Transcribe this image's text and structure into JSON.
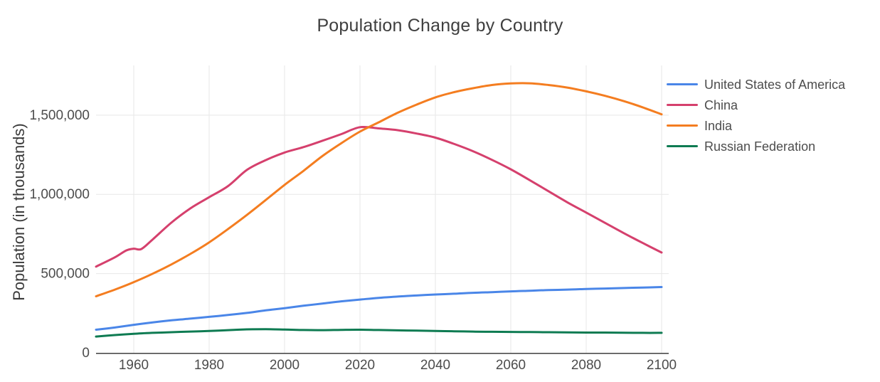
{
  "chart": {
    "title": "Population Change by Country",
    "y_axis_label": "Population (in thousands)",
    "x_ticks": [
      1960,
      1980,
      2000,
      2020,
      2040,
      2060,
      2080,
      2100
    ],
    "y_ticks": [
      {
        "value": 0,
        "label": "0"
      },
      {
        "value": 500000,
        "label": "500,000"
      },
      {
        "value": 1000000,
        "label": "1,000,000"
      },
      {
        "value": 1500000,
        "label": "1,500,000"
      }
    ],
    "colors": {
      "grid": "#e7e7e7",
      "axis": "#3f3f3f",
      "tick_text": "#4c4c4c",
      "title_text": "#3f3f3f"
    }
  },
  "chart_data": {
    "type": "line",
    "title": "Population Change by Country",
    "xlabel": "",
    "ylabel": "Population (in thousands)",
    "x_domain": [
      1950,
      2100
    ],
    "y_domain": [
      0,
      1800000
    ],
    "grid": true,
    "legend_position": "top-right",
    "units": "thousands of people",
    "series": [
      {
        "name": "United States of America",
        "color": "#4a86e8",
        "x": [
          1950,
          1955,
          1960,
          1965,
          1970,
          1975,
          1980,
          1985,
          1990,
          1995,
          2000,
          2005,
          2010,
          2015,
          2020,
          2025,
          2030,
          2035,
          2040,
          2045,
          2050,
          2055,
          2060,
          2065,
          2070,
          2075,
          2080,
          2085,
          2090,
          2095,
          2100
        ],
        "values": [
          146000,
          160000,
          177000,
          192000,
          205000,
          216000,
          227000,
          239000,
          252000,
          268000,
          282000,
          297000,
          311000,
          325000,
          336000,
          347000,
          355000,
          362000,
          368000,
          373000,
          379000,
          383000,
          388000,
          392000,
          396000,
          399000,
          403000,
          406000,
          409000,
          412000,
          415000
        ]
      },
      {
        "name": "China",
        "color": "#d5406d",
        "x": [
          1950,
          1955,
          1958,
          1960,
          1962,
          1965,
          1970,
          1975,
          1980,
          1985,
          1990,
          1995,
          2000,
          2005,
          2010,
          2015,
          2020,
          2025,
          2030,
          2035,
          2040,
          2045,
          2050,
          2055,
          2060,
          2065,
          2070,
          2075,
          2080,
          2085,
          2090,
          2095,
          2100
        ],
        "values": [
          544000,
          603000,
          646000,
          657000,
          655000,
          715000,
          822000,
          911000,
          982000,
          1052000,
          1154000,
          1216000,
          1264000,
          1298000,
          1338000,
          1380000,
          1424000,
          1416000,
          1405000,
          1384000,
          1358000,
          1318000,
          1272000,
          1218000,
          1158000,
          1090000,
          1020000,
          950000,
          885000,
          820000,
          755000,
          693000,
          633000
        ]
      },
      {
        "name": "India",
        "color": "#f47d20",
        "x": [
          1950,
          1955,
          1960,
          1965,
          1970,
          1975,
          1980,
          1985,
          1990,
          1995,
          2000,
          2005,
          2010,
          2015,
          2020,
          2025,
          2030,
          2035,
          2040,
          2045,
          2050,
          2055,
          2060,
          2065,
          2070,
          2075,
          2080,
          2085,
          2090,
          2095,
          2100
        ],
        "values": [
          357000,
          399000,
          446000,
          499000,
          558000,
          624000,
          697000,
          781000,
          870000,
          964000,
          1060000,
          1148000,
          1241000,
          1322000,
          1396000,
          1455000,
          1515000,
          1566000,
          1612000,
          1645000,
          1670000,
          1690000,
          1700000,
          1701000,
          1690000,
          1674000,
          1650000,
          1622000,
          1588000,
          1549000,
          1505000
        ]
      },
      {
        "name": "Russian Federation",
        "color": "#0e7b52",
        "x": [
          1950,
          1955,
          1960,
          1965,
          1970,
          1975,
          1980,
          1985,
          1990,
          1995,
          2000,
          2005,
          2010,
          2015,
          2020,
          2025,
          2030,
          2035,
          2040,
          2045,
          2050,
          2055,
          2060,
          2065,
          2070,
          2075,
          2080,
          2085,
          2090,
          2095,
          2100
        ],
        "values": [
          103000,
          112000,
          120000,
          126000,
          130000,
          134000,
          138000,
          143000,
          148000,
          149000,
          147000,
          144000,
          143000,
          145000,
          146000,
          144000,
          142000,
          140000,
          138000,
          136000,
          134000,
          133000,
          132000,
          131000,
          130000,
          129000,
          128000,
          128000,
          127000,
          126000,
          126000
        ]
      }
    ]
  }
}
